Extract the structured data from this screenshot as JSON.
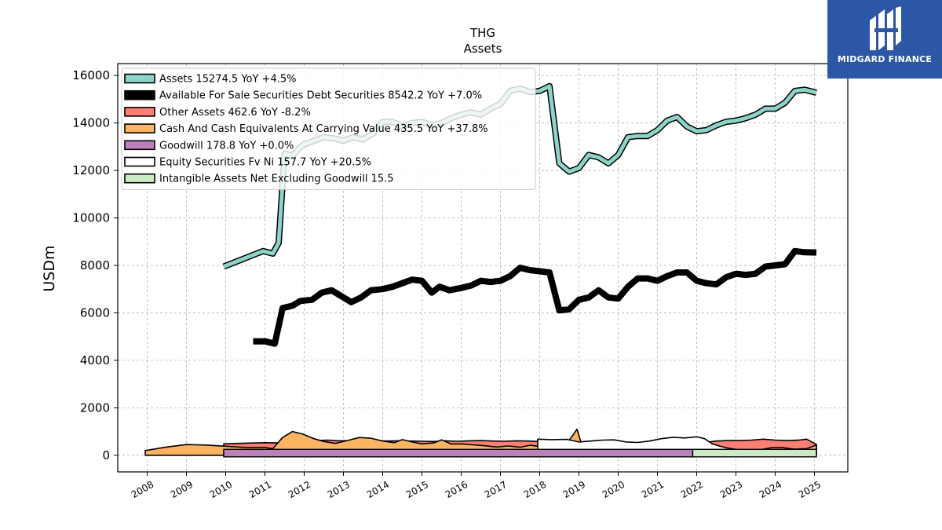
{
  "chart_data": {
    "type": "area",
    "title": "THG",
    "subtitle": "Assets",
    "ylabel": "USDm",
    "xlabel": "",
    "ylim": [
      -700,
      16500
    ],
    "xlim": [
      2007.25,
      2025.85
    ],
    "yticks": [
      0,
      2000,
      4000,
      6000,
      8000,
      10000,
      12000,
      14000,
      16000
    ],
    "xticks": [
      "2008",
      "2009",
      "2010",
      "2011",
      "2012",
      "2013",
      "2014",
      "2015",
      "2016",
      "2017",
      "2018",
      "2019",
      "2020",
      "2021",
      "2022",
      "2023",
      "2024",
      "2025"
    ],
    "grid": true,
    "legend_position": "top-left",
    "series": [
      {
        "name": "Assets",
        "label": "Assets  15274.5 YoY +4.5%",
        "color": "#8dd3c7",
        "style": "line-thick",
        "x": [
          2009.95,
          2010.95,
          2011.2,
          2011.35,
          2011.5,
          2011.7,
          2011.85,
          2012.0,
          2012.25,
          2012.5,
          2012.75,
          2013.0,
          2013.25,
          2013.5,
          2013.75,
          2014.0,
          2014.25,
          2014.5,
          2014.75,
          2015.0,
          2015.25,
          2015.5,
          2015.75,
          2016.0,
          2016.25,
          2016.5,
          2016.75,
          2017.0,
          2017.25,
          2017.5,
          2017.75,
          2018.0,
          2018.25,
          2018.5,
          2018.75,
          2019.0,
          2019.25,
          2019.5,
          2019.75,
          2020.0,
          2020.25,
          2020.5,
          2020.75,
          2021.0,
          2021.25,
          2021.5,
          2021.75,
          2022.0,
          2022.25,
          2022.5,
          2022.75,
          2023.0,
          2023.25,
          2023.5,
          2023.75,
          2024.0,
          2024.25,
          2024.5,
          2024.75,
          2025.05
        ],
        "values": [
          7950,
          8600,
          8500,
          8950,
          12700,
          12600,
          12900,
          13100,
          13250,
          13400,
          13350,
          13250,
          13400,
          13300,
          13550,
          14050,
          14050,
          13850,
          14000,
          14050,
          13900,
          14000,
          14200,
          14350,
          14450,
          14350,
          14600,
          14800,
          15350,
          15450,
          15300,
          15350,
          15550,
          12300,
          11950,
          12100,
          12650,
          12550,
          12300,
          12650,
          13400,
          13450,
          13450,
          13700,
          14100,
          14250,
          13850,
          13650,
          13700,
          13900,
          14050,
          14100,
          14200,
          14350,
          14600,
          14600,
          14850,
          15350,
          15400,
          15274.5
        ]
      },
      {
        "name": "Available For Sale Securities Debt Securities",
        "label": "Available For Sale Securities Debt Securities  8542.2 YoY +7.0%",
        "color": "#000000",
        "style": "line-thick",
        "x": [
          2010.7,
          2011.0,
          2011.25,
          2011.45,
          2011.7,
          2011.9,
          2012.2,
          2012.45,
          2012.7,
          2012.95,
          2013.2,
          2013.45,
          2013.7,
          2014.0,
          2014.25,
          2014.5,
          2014.75,
          2015.0,
          2015.25,
          2015.45,
          2015.7,
          2016.0,
          2016.25,
          2016.5,
          2016.75,
          2017.0,
          2017.25,
          2017.5,
          2017.75,
          2018.0,
          2018.25,
          2018.5,
          2018.75,
          2019.0,
          2019.25,
          2019.5,
          2019.75,
          2020.0,
          2020.25,
          2020.5,
          2020.75,
          2021.0,
          2021.25,
          2021.5,
          2021.75,
          2022.0,
          2022.25,
          2022.5,
          2022.75,
          2023.0,
          2023.25,
          2023.5,
          2023.75,
          2024.0,
          2024.25,
          2024.5,
          2024.75,
          2025.05
        ],
        "values": [
          4800,
          4800,
          4700,
          6200,
          6300,
          6500,
          6550,
          6850,
          6950,
          6700,
          6450,
          6650,
          6950,
          7000,
          7100,
          7250,
          7400,
          7350,
          6850,
          7100,
          6950,
          7050,
          7150,
          7350,
          7300,
          7350,
          7550,
          7900,
          7800,
          7750,
          7700,
          6100,
          6150,
          6550,
          6650,
          6950,
          6650,
          6600,
          7100,
          7450,
          7450,
          7350,
          7550,
          7700,
          7700,
          7350,
          7250,
          7200,
          7500,
          7650,
          7600,
          7650,
          7950,
          8000,
          8050,
          8600,
          8550,
          8542.2
        ]
      },
      {
        "name": "Other Assets",
        "label": "Other Assets  462.6 YoY -8.2%",
        "color": "#fb8072",
        "style": "area",
        "x": [
          2009.95,
          2010.5,
          2011.0,
          2011.3,
          2011.5,
          2011.75,
          2012.0,
          2012.3,
          2012.6,
          2012.9,
          2013.2,
          2013.5,
          2013.8,
          2014.1,
          2014.4,
          2014.7,
          2015.0,
          2015.3,
          2015.6,
          2015.9,
          2016.2,
          2016.5,
          2016.8,
          2017.1,
          2017.4,
          2017.7,
          2018.0,
          2018.3,
          2018.6,
          2018.9,
          2019.2,
          2019.5,
          2019.8,
          2020.1,
          2020.4,
          2020.7,
          2021.0,
          2021.3,
          2021.6,
          2021.9,
          2022.2,
          2022.5,
          2022.8,
          2023.1,
          2023.4,
          2023.7,
          2024.0,
          2024.3,
          2024.6,
          2024.8,
          2025.05
        ],
        "values": [
          480,
          510,
          530,
          520,
          560,
          600,
          580,
          620,
          640,
          610,
          620,
          640,
          620,
          600,
          610,
          600,
          590,
          580,
          610,
          590,
          610,
          620,
          600,
          590,
          610,
          600,
          580,
          560,
          520,
          500,
          480,
          420,
          450,
          400,
          380,
          420,
          430,
          480,
          500,
          560,
          540,
          600,
          620,
          620,
          640,
          680,
          640,
          620,
          640,
          680,
          462.6
        ]
      },
      {
        "name": "Cash And Cash Equivalents At Carrying Value",
        "label": "Cash And Cash Equivalents At Carrying Value  435.5 YoY +37.8%",
        "color": "#fdb462",
        "style": "area",
        "x": [
          2007.95,
          2008.5,
          2009.0,
          2009.5,
          2010.0,
          2010.5,
          2011.0,
          2011.2,
          2011.45,
          2011.7,
          2011.95,
          2012.25,
          2012.5,
          2012.8,
          2013.1,
          2013.4,
          2013.7,
          2014.0,
          2014.3,
          2014.5,
          2014.75,
          2015.0,
          2015.3,
          2015.5,
          2015.75,
          2016.0,
          2016.3,
          2016.6,
          2016.9,
          2017.2,
          2017.5,
          2017.75,
          2018.0,
          2018.3,
          2018.6,
          2018.85,
          2018.95,
          2019.1,
          2019.4,
          2019.7,
          2020.0,
          2020.3,
          2020.6,
          2020.9,
          2021.2,
          2021.5,
          2021.8,
          2022.1,
          2022.4,
          2022.7,
          2023.0,
          2023.3,
          2023.6,
          2023.9,
          2024.2,
          2024.5,
          2024.8,
          2025.05
        ],
        "values": [
          200,
          350,
          450,
          430,
          380,
          330,
          330,
          280,
          750,
          1000,
          900,
          700,
          580,
          500,
          620,
          750,
          720,
          600,
          530,
          660,
          560,
          480,
          520,
          650,
          470,
          480,
          440,
          400,
          350,
          390,
          340,
          420,
          370,
          350,
          330,
          850,
          1100,
          300,
          250,
          280,
          330,
          250,
          280,
          260,
          200,
          150,
          200,
          310,
          280,
          260,
          200,
          180,
          220,
          320,
          320,
          260,
          280,
          435.5
        ]
      },
      {
        "name": "Goodwill",
        "label": "Goodwill  178.8 YoY +0.0%",
        "color": "#bc80bd",
        "style": "area",
        "x": [
          2009.95,
          2011.0,
          2012.0,
          2013.0,
          2014.0,
          2015.0,
          2016.0,
          2017.0,
          2018.0,
          2019.0,
          2020.0,
          2021.0,
          2021.9
        ],
        "values": [
          180,
          180,
          180,
          180,
          180,
          180,
          180,
          180,
          180,
          180,
          180,
          180,
          178.8
        ]
      },
      {
        "name": "Equity Securities Fv Ni",
        "label": "Equity Securities Fv Ni  157.7 YoY +20.5%",
        "color": "#ffffff",
        "style": "area",
        "x": [
          2017.95,
          2018.3,
          2018.7,
          2019.0,
          2019.3,
          2019.6,
          2019.9,
          2020.2,
          2020.5,
          2020.8,
          2021.1,
          2021.4,
          2021.7,
          2022.0,
          2022.2,
          2022.4,
          2022.6,
          2022.8,
          2023.0,
          2023.3,
          2023.6,
          2023.9,
          2024.2,
          2024.5,
          2024.8,
          2025.05
        ],
        "values": [
          680,
          660,
          670,
          560,
          600,
          640,
          650,
          560,
          540,
          600,
          700,
          760,
          730,
          780,
          700,
          480,
          380,
          300,
          250,
          190,
          160,
          150,
          155,
          160,
          160,
          157.7
        ]
      },
      {
        "name": "Intangible Assets Net Excluding Goodwill",
        "label": "Intangible Assets Net Excluding Goodwill  15.5",
        "color": "#ccebc5",
        "style": "area",
        "x": [
          2021.9,
          2023.0,
          2024.0,
          2025.05
        ],
        "values": [
          15.5,
          15.5,
          15.5,
          15.5
        ]
      }
    ]
  },
  "brand": {
    "name": "MIDGARD FINANCE",
    "icon": "midgard-logo-icon",
    "color": "#2c57a6"
  }
}
